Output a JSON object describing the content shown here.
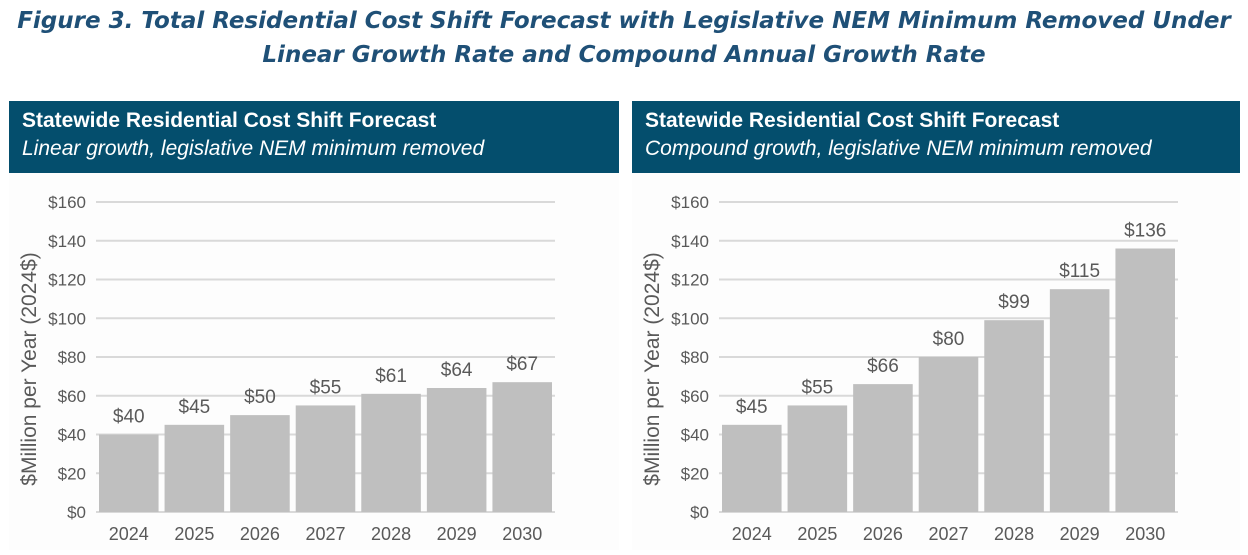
{
  "figure_title_line1": "Figure 3. Total Residential Cost Shift Forecast with Legislative NEM Minimum Removed Under",
  "figure_title_line2": "Linear Growth Rate and Compound Annual Growth Rate",
  "colors": {
    "header_bg": "#044e6d",
    "bar": "#bfbfbf",
    "title": "#1f5077",
    "grid": "#d9d9d9"
  },
  "chart_data": [
    {
      "type": "bar",
      "title": "Statewide Residential Cost Shift Forecast",
      "subtitle": "Linear growth, legislative NEM minimum removed",
      "ylabel": "$Million per Year (2024$)",
      "xlabel": "",
      "categories": [
        "2024",
        "2025",
        "2026",
        "2027",
        "2028",
        "2029",
        "2030"
      ],
      "values": [
        40,
        45,
        50,
        55,
        61,
        64,
        67
      ],
      "data_labels": [
        "$40",
        "$45",
        "$50",
        "$55",
        "$61",
        "$64",
        "$67"
      ],
      "ylim": [
        0,
        160
      ],
      "yticks": [
        "$0",
        "$20",
        "$40",
        "$60",
        "$80",
        "$100",
        "$120",
        "$140",
        "$160"
      ],
      "grid": true
    },
    {
      "type": "bar",
      "title": "Statewide Residential Cost Shift Forecast",
      "subtitle": "Compound growth, legislative NEM minimum removed",
      "ylabel": "$Million per Year (2024$)",
      "xlabel": "",
      "categories": [
        "2024",
        "2025",
        "2026",
        "2027",
        "2028",
        "2029",
        "2030"
      ],
      "values": [
        45,
        55,
        66,
        80,
        99,
        115,
        136
      ],
      "data_labels": [
        "$45",
        "$55",
        "$66",
        "$80",
        "$99",
        "$115",
        "$136"
      ],
      "ylim": [
        0,
        160
      ],
      "yticks": [
        "$0",
        "$20",
        "$40",
        "$60",
        "$80",
        "$100",
        "$120",
        "$140",
        "$160"
      ],
      "grid": true
    }
  ]
}
